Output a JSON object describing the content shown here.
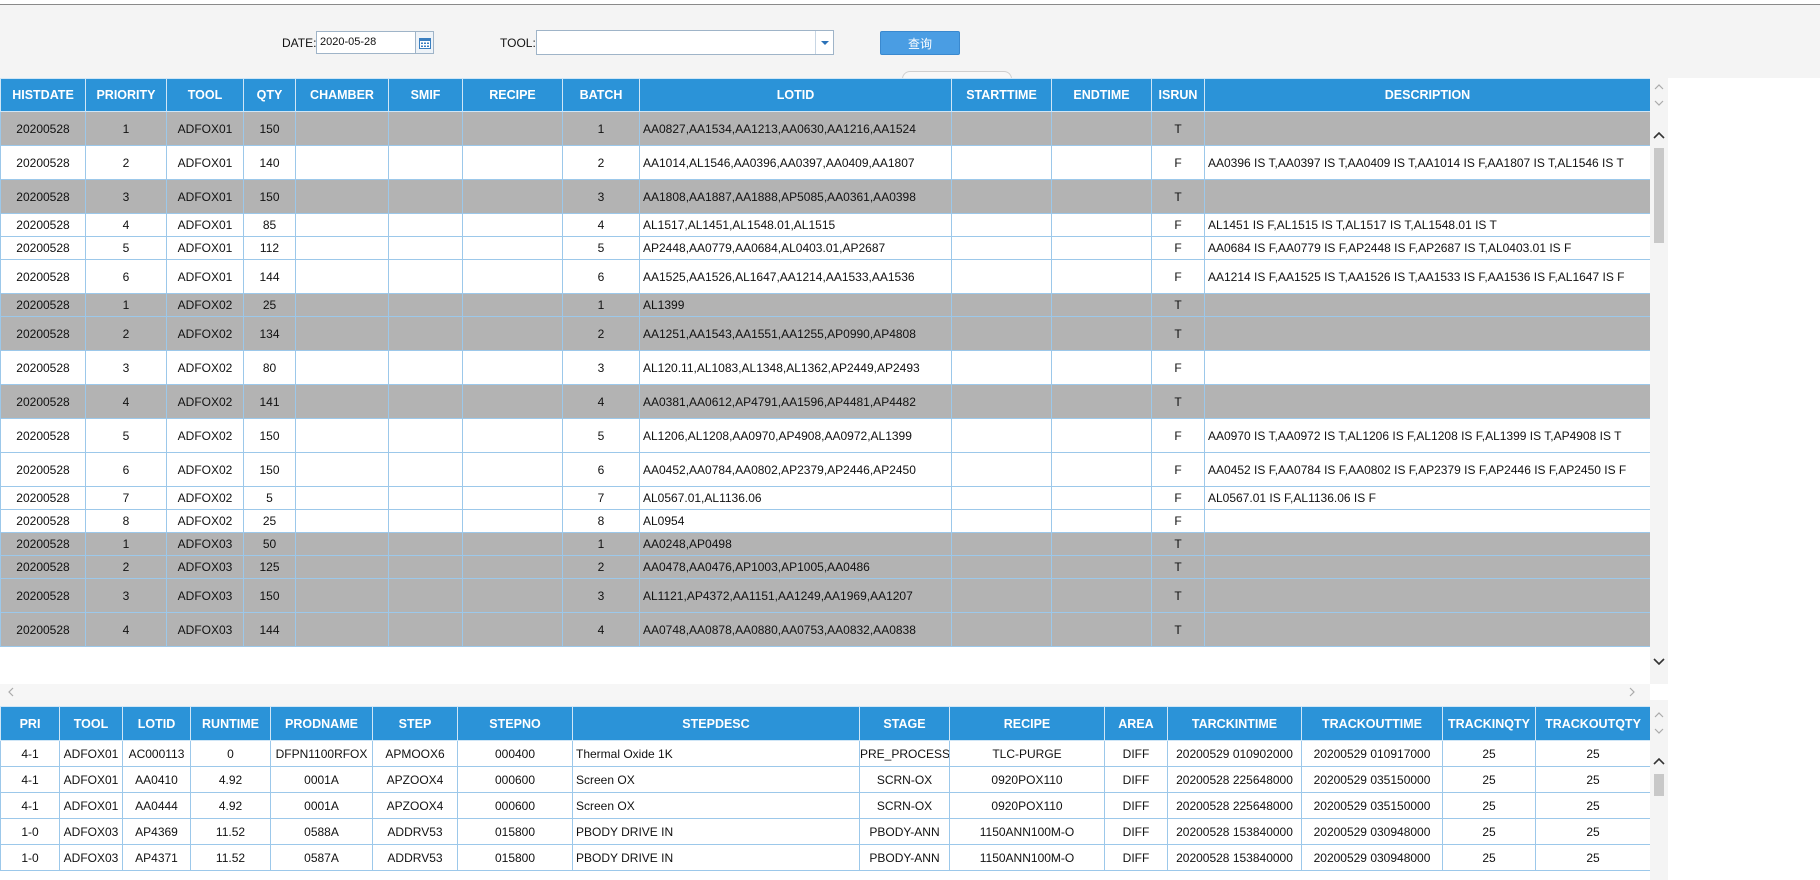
{
  "filters": {
    "date_label": "DATE:",
    "date_value": "2020-05-28",
    "tool_label": "TOOL:",
    "tool_value": "",
    "query_label": "查询"
  },
  "icons": {
    "calendar": "calendar-icon",
    "dropdown": "chevron-down-icon",
    "scroll_up": "chevron-up-icon",
    "scroll_down": "chevron-down-icon",
    "scroll_left": "chevron-left-icon",
    "scroll_right": "chevron-right-icon"
  },
  "colors": {
    "header_bg": "#2b93d8",
    "row_gray": "#b3b3b3",
    "button_bg": "#4a9de3",
    "grid_border": "#9cc8ea"
  },
  "grid1": {
    "columns": [
      "HISTDATE",
      "PRIORITY",
      "TOOL",
      "QTY",
      "CHAMBER",
      "SMIF",
      "RECIPE",
      "BATCH",
      "LOTID",
      "STARTTIME",
      "ENDTIME",
      "ISRUN",
      "DESCRIPTION"
    ],
    "rows": [
      {
        "histdate": "20200528",
        "priority": "1",
        "tool": "ADFOX01",
        "qty": "150",
        "chamber": "",
        "smif": "",
        "recipe": "",
        "batch": "1",
        "lotid": "AA0827,AA1534,AA1213,AA0630,AA1216,AA1524",
        "starttime": "",
        "endtime": "",
        "isrun": "T",
        "description": ""
      },
      {
        "histdate": "20200528",
        "priority": "2",
        "tool": "ADFOX01",
        "qty": "140",
        "chamber": "",
        "smif": "",
        "recipe": "",
        "batch": "2",
        "lotid": "AA1014,AL1546,AA0396,AA0397,AA0409,AA1807",
        "starttime": "",
        "endtime": "",
        "isrun": "F",
        "description": "AA0396 IS T,AA0397 IS T,AA0409 IS T,AA1014 IS F,AA1807 IS T,AL1546 IS T"
      },
      {
        "histdate": "20200528",
        "priority": "3",
        "tool": "ADFOX01",
        "qty": "150",
        "chamber": "",
        "smif": "",
        "recipe": "",
        "batch": "3",
        "lotid": "AA1808,AA1887,AA1888,AP5085,AA0361,AA0398",
        "starttime": "",
        "endtime": "",
        "isrun": "T",
        "description": ""
      },
      {
        "histdate": "20200528",
        "priority": "4",
        "tool": "ADFOX01",
        "qty": "85",
        "chamber": "",
        "smif": "",
        "recipe": "",
        "batch": "4",
        "lotid": "AL1517,AL1451,AL1548.01,AL1515",
        "starttime": "",
        "endtime": "",
        "isrun": "F",
        "description": "AL1451 IS F,AL1515 IS T,AL1517 IS T,AL1548.01 IS T"
      },
      {
        "histdate": "20200528",
        "priority": "5",
        "tool": "ADFOX01",
        "qty": "112",
        "chamber": "",
        "smif": "",
        "recipe": "",
        "batch": "5",
        "lotid": "AP2448,AA0779,AA0684,AL0403.01,AP2687",
        "starttime": "",
        "endtime": "",
        "isrun": "F",
        "description": "AA0684 IS F,AA0779 IS F,AP2448 IS F,AP2687 IS T,AL0403.01 IS F"
      },
      {
        "histdate": "20200528",
        "priority": "6",
        "tool": "ADFOX01",
        "qty": "144",
        "chamber": "",
        "smif": "",
        "recipe": "",
        "batch": "6",
        "lotid": "AA1525,AA1526,AL1647,AA1214,AA1533,AA1536",
        "starttime": "",
        "endtime": "",
        "isrun": "F",
        "description": "AA1214 IS F,AA1525 IS T,AA1526 IS T,AA1533 IS F,AA1536 IS F,AL1647 IS F"
      },
      {
        "histdate": "20200528",
        "priority": "1",
        "tool": "ADFOX02",
        "qty": "25",
        "chamber": "",
        "smif": "",
        "recipe": "",
        "batch": "1",
        "lotid": "AL1399",
        "starttime": "",
        "endtime": "",
        "isrun": "T",
        "description": ""
      },
      {
        "histdate": "20200528",
        "priority": "2",
        "tool": "ADFOX02",
        "qty": "134",
        "chamber": "",
        "smif": "",
        "recipe": "",
        "batch": "2",
        "lotid": "AA1251,AA1543,AA1551,AA1255,AP0990,AP4808",
        "starttime": "",
        "endtime": "",
        "isrun": "T",
        "description": ""
      },
      {
        "histdate": "20200528",
        "priority": "3",
        "tool": "ADFOX02",
        "qty": "80",
        "chamber": "",
        "smif": "",
        "recipe": "",
        "batch": "3",
        "lotid": "AL120.11,AL1083,AL1348,AL1362,AP2449,AP2493",
        "starttime": "",
        "endtime": "",
        "isrun": "F",
        "description": ""
      },
      {
        "histdate": "20200528",
        "priority": "4",
        "tool": "ADFOX02",
        "qty": "141",
        "chamber": "",
        "smif": "",
        "recipe": "",
        "batch": "4",
        "lotid": "AA0381,AA0612,AP4791,AA1596,AP4481,AP4482",
        "starttime": "",
        "endtime": "",
        "isrun": "T",
        "description": ""
      },
      {
        "histdate": "20200528",
        "priority": "5",
        "tool": "ADFOX02",
        "qty": "150",
        "chamber": "",
        "smif": "",
        "recipe": "",
        "batch": "5",
        "lotid": "AL1206,AL1208,AA0970,AP4908,AA0972,AL1399",
        "starttime": "",
        "endtime": "",
        "isrun": "F",
        "description": "AA0970 IS T,AA0972 IS T,AL1206 IS F,AL1208 IS F,AL1399 IS T,AP4908 IS T"
      },
      {
        "histdate": "20200528",
        "priority": "6",
        "tool": "ADFOX02",
        "qty": "150",
        "chamber": "",
        "smif": "",
        "recipe": "",
        "batch": "6",
        "lotid": "AA0452,AA0784,AA0802,AP2379,AP2446,AP2450",
        "starttime": "",
        "endtime": "",
        "isrun": "F",
        "description": "AA0452 IS F,AA0784 IS F,AA0802 IS F,AP2379 IS F,AP2446 IS F,AP2450 IS F"
      },
      {
        "histdate": "20200528",
        "priority": "7",
        "tool": "ADFOX02",
        "qty": "5",
        "chamber": "",
        "smif": "",
        "recipe": "",
        "batch": "7",
        "lotid": "AL0567.01,AL1136.06",
        "starttime": "",
        "endtime": "",
        "isrun": "F",
        "description": "AL0567.01 IS F,AL1136.06 IS F"
      },
      {
        "histdate": "20200528",
        "priority": "8",
        "tool": "ADFOX02",
        "qty": "25",
        "chamber": "",
        "smif": "",
        "recipe": "",
        "batch": "8",
        "lotid": "AL0954",
        "starttime": "",
        "endtime": "",
        "isrun": "F",
        "description": ""
      },
      {
        "histdate": "20200528",
        "priority": "1",
        "tool": "ADFOX03",
        "qty": "50",
        "chamber": "",
        "smif": "",
        "recipe": "",
        "batch": "1",
        "lotid": "AA0248,AP0498",
        "starttime": "",
        "endtime": "",
        "isrun": "T",
        "description": ""
      },
      {
        "histdate": "20200528",
        "priority": "2",
        "tool": "ADFOX03",
        "qty": "125",
        "chamber": "",
        "smif": "",
        "recipe": "",
        "batch": "2",
        "lotid": "AA0478,AA0476,AP1003,AP1005,AA0486",
        "starttime": "",
        "endtime": "",
        "isrun": "T",
        "description": ""
      },
      {
        "histdate": "20200528",
        "priority": "3",
        "tool": "ADFOX03",
        "qty": "150",
        "chamber": "",
        "smif": "",
        "recipe": "",
        "batch": "3",
        "lotid": "AL1121,AP4372,AA1151,AA1249,AA1969,AA1207",
        "starttime": "",
        "endtime": "",
        "isrun": "T",
        "description": ""
      },
      {
        "histdate": "20200528",
        "priority": "4",
        "tool": "ADFOX03",
        "qty": "144",
        "chamber": "",
        "smif": "",
        "recipe": "",
        "batch": "4",
        "lotid": "AA0748,AA0878,AA0880,AA0753,AA0832,AA0838",
        "starttime": "",
        "endtime": "",
        "isrun": "T",
        "description": ""
      }
    ]
  },
  "grid2": {
    "columns": [
      "PRI",
      "TOOL",
      "LOTID",
      "RUNTIME",
      "PRODNAME",
      "STEP",
      "STEPNO",
      "STEPDESC",
      "STAGE",
      "RECIPE",
      "AREA",
      "TARCKINTIME",
      "TRACKOUTTIME",
      "TRACKINQTY",
      "TRACKOUTQTY"
    ],
    "rows": [
      {
        "pri": "4-1",
        "tool": "ADFOX01",
        "lotid": "AC000113",
        "runtime": "0",
        "prodname": "DFPN1100RFOX",
        "step": "APMOOX6",
        "stepno": "000400",
        "stepdesc": "Thermal Oxide 1K",
        "stage": "PRE_PROCESS",
        "recipe": "TLC-PURGE",
        "area": "DIFF",
        "trackin": "20200529 010902000",
        "trackout": "20200529 010917000",
        "trackinqty": "25",
        "trackoutqty": "25"
      },
      {
        "pri": "4-1",
        "tool": "ADFOX01",
        "lotid": "AA0410",
        "runtime": "4.92",
        "prodname": "0001A",
        "step": "APZOOX4",
        "stepno": "000600",
        "stepdesc": "Screen OX",
        "stage": "SCRN-OX",
        "recipe": "0920POX110",
        "area": "DIFF",
        "trackin": "20200528 225648000",
        "trackout": "20200529 035150000",
        "trackinqty": "25",
        "trackoutqty": "25"
      },
      {
        "pri": "4-1",
        "tool": "ADFOX01",
        "lotid": "AA0444",
        "runtime": "4.92",
        "prodname": "0001A",
        "step": "APZOOX4",
        "stepno": "000600",
        "stepdesc": "Screen OX",
        "stage": "SCRN-OX",
        "recipe": "0920POX110",
        "area": "DIFF",
        "trackin": "20200528 225648000",
        "trackout": "20200529 035150000",
        "trackinqty": "25",
        "trackoutqty": "25"
      },
      {
        "pri": "1-0",
        "tool": "ADFOX03",
        "lotid": "AP4369",
        "runtime": "11.52",
        "prodname": "0588A",
        "step": "ADDRV53",
        "stepno": "015800",
        "stepdesc": "PBODY DRIVE IN",
        "stage": "PBODY-ANN",
        "recipe": "1150ANN100M-O",
        "area": "DIFF",
        "trackin": "20200528 153840000",
        "trackout": "20200529 030948000",
        "trackinqty": "25",
        "trackoutqty": "25"
      },
      {
        "pri": "1-0",
        "tool": "ADFOX03",
        "lotid": "AP4371",
        "runtime": "11.52",
        "prodname": "0587A",
        "step": "ADDRV53",
        "stepno": "015800",
        "stepdesc": "PBODY DRIVE IN",
        "stage": "PBODY-ANN",
        "recipe": "1150ANN100M-O",
        "area": "DIFF",
        "trackin": "20200528 153840000",
        "trackout": "20200529 030948000",
        "trackinqty": "25",
        "trackoutqty": "25"
      }
    ]
  }
}
